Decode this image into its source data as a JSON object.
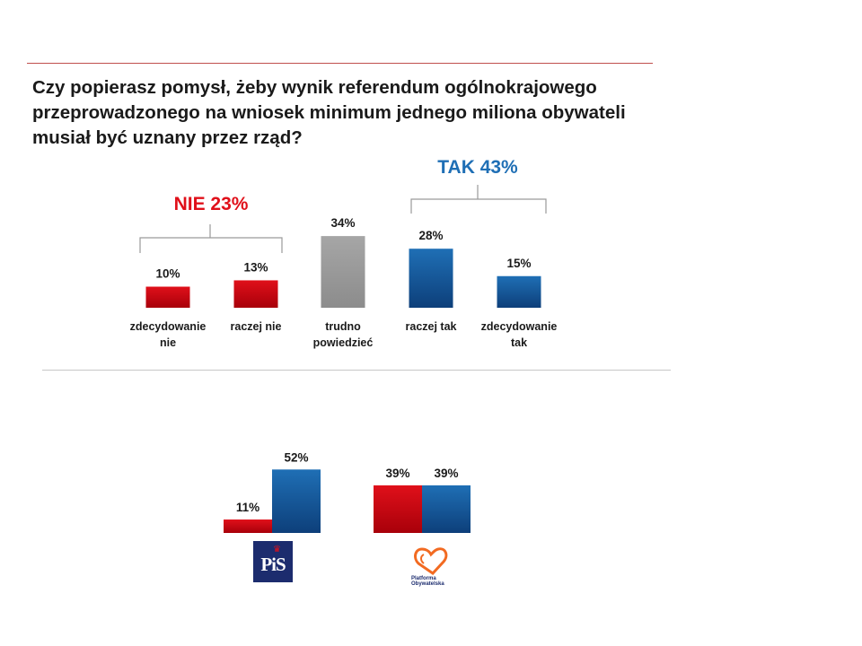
{
  "question": "Czy popierasz pomysł, żeby wynik referendum ogólnokrajowego przeprowadzonego na wniosek minimum jednego miliona obywateli musiał być uznany przez rząd?",
  "brackets": {
    "nie": "NIE 23%",
    "tak": "TAK 43%"
  },
  "colors": {
    "nie": "#e0101a",
    "trudno": "#a6a6a6",
    "tak": "#1f6fb5"
  },
  "chart_data": [
    {
      "type": "bar",
      "title": "",
      "categories": [
        [
          "zdecydowanie",
          "nie"
        ],
        [
          "raczej nie"
        ],
        [
          "trudno",
          "powiedzieć"
        ],
        [
          "raczej tak"
        ],
        [
          "zdecydowanie",
          "tak"
        ]
      ],
      "values": [
        10,
        13,
        34,
        28,
        15
      ],
      "value_labels": [
        "10%",
        "13%",
        "34%",
        "28%",
        "15%"
      ],
      "colors": [
        "nie",
        "nie",
        "trudno",
        "tak",
        "tak"
      ]
    },
    {
      "type": "bar",
      "title": "",
      "groups": [
        "PiS",
        "Platforma Obywatelska"
      ],
      "series": [
        {
          "color": "nie",
          "values": [
            11,
            39
          ],
          "value_labels": [
            "11%",
            "39%"
          ]
        },
        {
          "color": "tak",
          "values": [
            52,
            39
          ],
          "value_labels": [
            "52%",
            "39%"
          ]
        }
      ]
    }
  ],
  "logos": {
    "pis": {
      "text": "PiS"
    },
    "po": {
      "text_line1": "Platforma",
      "text_line2": "Obywatelska"
    }
  }
}
